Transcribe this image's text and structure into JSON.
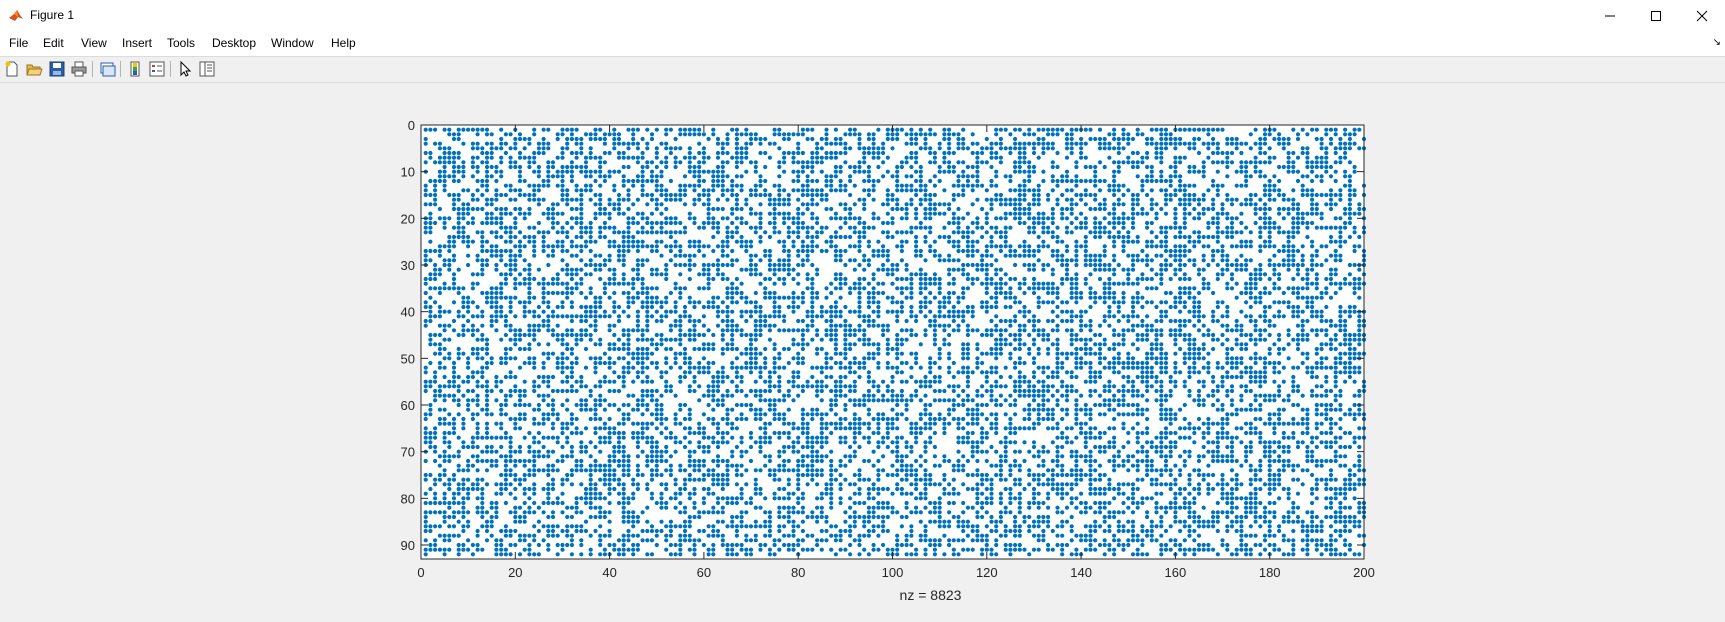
{
  "window": {
    "title": "Figure 1",
    "controls": [
      "minimize-icon",
      "maximize-icon",
      "close-icon"
    ]
  },
  "menu": [
    "File",
    "Edit",
    "View",
    "Insert",
    "Tools",
    "Desktop",
    "Window",
    "Help"
  ],
  "toolbar": [
    "new-figure-icon",
    "open-file-icon",
    "save-icon",
    "print-icon",
    "link-plot-icon",
    "colorbar-icon",
    "legend-icon",
    "edit-plot-icon",
    "property-inspector-icon"
  ],
  "colors": {
    "marker": "#0072bd",
    "axis": "#262626",
    "background": "#f0f0f0"
  },
  "chart_data": {
    "type": "scatter",
    "plot_kind": "spy",
    "xlabel": "nz = 8823",
    "nz": 8823,
    "rows": 92,
    "cols": 200,
    "xlim": [
      0,
      200
    ],
    "ylim": [
      0,
      93
    ],
    "y_reversed": true,
    "xticks": [
      "0",
      "20",
      "40",
      "60",
      "80",
      "100",
      "120",
      "140",
      "160",
      "180",
      "200"
    ],
    "yticks": [
      "0",
      "10",
      "20",
      "30",
      "40",
      "50",
      "60",
      "70",
      "80",
      "90"
    ],
    "density": 0.48,
    "grid": false
  }
}
